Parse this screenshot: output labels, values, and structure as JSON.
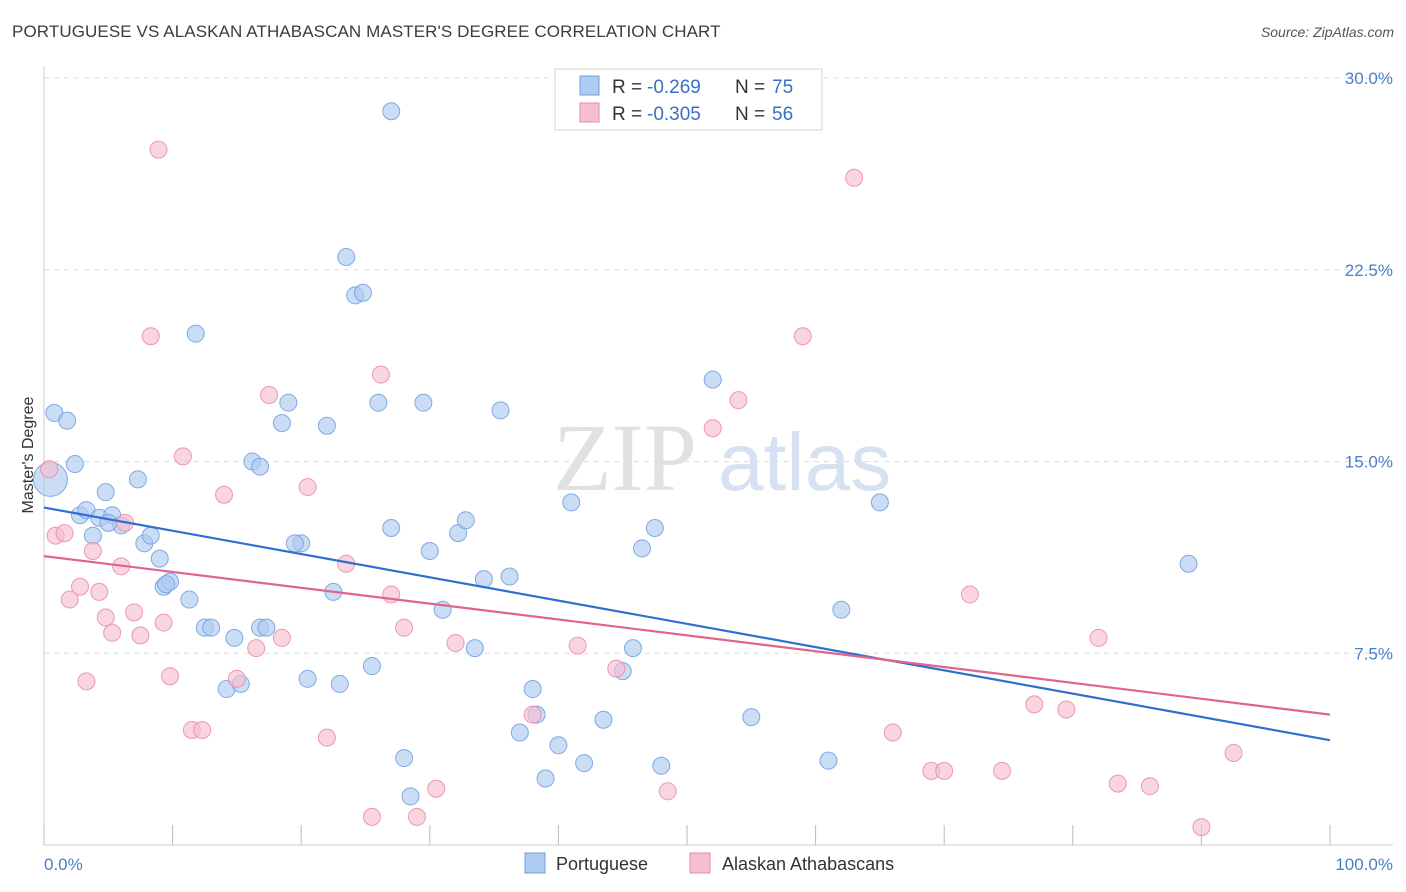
{
  "title": "PORTUGUESE VS ALASKAN ATHABASCAN MASTER'S DEGREE CORRELATION CHART",
  "source": "Source: ZipAtlas.com",
  "watermark": {
    "zip": "ZIP",
    "atlas": "atlas"
  },
  "legend": {
    "rows": [
      {
        "r_label": "R =",
        "r_value": "-0.269",
        "n_label": "N =",
        "n_value": "75"
      },
      {
        "r_label": "R =",
        "r_value": "-0.305",
        "n_label": "N =",
        "n_value": "56"
      }
    ]
  },
  "colors": {
    "portuguese_fill": "#aecbf0",
    "portuguese_stroke": "#6d9ee0",
    "portuguese_line": "#2f6fd0",
    "alaskan_fill": "#f6bfd0",
    "alaskan_stroke": "#e98aa8",
    "alaskan_line": "#e0648f",
    "axis_label": "#4a7fc9",
    "grid": "#dddddd"
  },
  "chart_data": {
    "type": "scatter",
    "ylabel": "Master's Degree",
    "xlim": [
      0,
      100
    ],
    "ylim": [
      0,
      30
    ],
    "x_tick_labels": [
      "0.0%",
      "100.0%"
    ],
    "y_ticks": [
      7.5,
      15.0,
      22.5,
      30.0
    ],
    "y_tick_labels": [
      "7.5%",
      "15.0%",
      "22.5%",
      "30.0%"
    ],
    "grid": "horizontal dashed",
    "series": [
      {
        "name": "Portuguese",
        "trend": {
          "x": [
            0,
            100
          ],
          "y": [
            13.2,
            4.1
          ]
        },
        "points": [
          [
            0.5,
            14.3
          ],
          [
            0.8,
            16.9
          ],
          [
            1.8,
            16.6
          ],
          [
            2.4,
            14.9
          ],
          [
            2.8,
            12.9
          ],
          [
            3.3,
            13.1
          ],
          [
            3.8,
            12.1
          ],
          [
            4.3,
            12.8
          ],
          [
            4.8,
            13.8
          ],
          [
            5.3,
            12.9
          ],
          [
            6.0,
            12.5
          ],
          [
            7.3,
            14.3
          ],
          [
            7.8,
            11.8
          ],
          [
            8.3,
            12.1
          ],
          [
            9.0,
            11.2
          ],
          [
            9.3,
            10.1
          ],
          [
            9.8,
            10.3
          ],
          [
            11.3,
            9.6
          ],
          [
            12.5,
            8.5
          ],
          [
            13.0,
            8.5
          ],
          [
            11.8,
            20.0
          ],
          [
            14.2,
            6.1
          ],
          [
            14.8,
            8.1
          ],
          [
            15.3,
            6.3
          ],
          [
            16.8,
            8.5
          ],
          [
            17.3,
            8.5
          ],
          [
            16.2,
            15.0
          ],
          [
            16.8,
            14.8
          ],
          [
            18.5,
            16.5
          ],
          [
            19.0,
            17.3
          ],
          [
            20.0,
            11.8
          ],
          [
            20.5,
            6.5
          ],
          [
            22.0,
            16.4
          ],
          [
            22.5,
            9.9
          ],
          [
            23.0,
            6.3
          ],
          [
            23.5,
            23.0
          ],
          [
            24.2,
            21.5
          ],
          [
            24.8,
            21.6
          ],
          [
            25.5,
            7.0
          ],
          [
            26.0,
            17.3
          ],
          [
            27.0,
            12.4
          ],
          [
            28.0,
            3.4
          ],
          [
            28.5,
            1.9
          ],
          [
            29.5,
            17.3
          ],
          [
            30.0,
            11.5
          ],
          [
            31.0,
            9.2
          ],
          [
            32.2,
            12.2
          ],
          [
            32.8,
            12.7
          ],
          [
            33.5,
            7.7
          ],
          [
            34.2,
            10.4
          ],
          [
            35.5,
            17.0
          ],
          [
            36.2,
            10.5
          ],
          [
            37.0,
            4.4
          ],
          [
            38.0,
            6.1
          ],
          [
            38.3,
            5.1
          ],
          [
            39.0,
            2.6
          ],
          [
            40.0,
            3.9
          ],
          [
            41.0,
            13.4
          ],
          [
            42.0,
            3.2
          ],
          [
            43.5,
            4.9
          ],
          [
            45.0,
            6.8
          ],
          [
            45.8,
            7.7
          ],
          [
            46.5,
            11.6
          ],
          [
            47.5,
            12.4
          ],
          [
            48.0,
            3.1
          ],
          [
            52.0,
            18.2
          ],
          [
            55.0,
            5.0
          ],
          [
            61.0,
            3.3
          ],
          [
            62.0,
            9.2
          ],
          [
            65.0,
            13.4
          ],
          [
            89.0,
            11.0
          ],
          [
            27.0,
            28.7
          ],
          [
            9.5,
            10.2
          ],
          [
            5.0,
            12.6
          ],
          [
            19.5,
            11.8
          ]
        ]
      },
      {
        "name": "Alaskan Athabascans",
        "trend": {
          "x": [
            0,
            100
          ],
          "y": [
            11.3,
            5.1
          ]
        },
        "points": [
          [
            0.4,
            14.7
          ],
          [
            0.9,
            12.1
          ],
          [
            1.6,
            12.2
          ],
          [
            2.0,
            9.6
          ],
          [
            2.8,
            10.1
          ],
          [
            3.3,
            6.4
          ],
          [
            3.8,
            11.5
          ],
          [
            4.3,
            9.9
          ],
          [
            4.8,
            8.9
          ],
          [
            5.3,
            8.3
          ],
          [
            6.0,
            10.9
          ],
          [
            6.3,
            12.6
          ],
          [
            7.0,
            9.1
          ],
          [
            7.5,
            8.2
          ],
          [
            8.3,
            19.9
          ],
          [
            8.9,
            27.2
          ],
          [
            9.3,
            8.7
          ],
          [
            9.8,
            6.6
          ],
          [
            10.8,
            15.2
          ],
          [
            11.5,
            4.5
          ],
          [
            12.3,
            4.5
          ],
          [
            14.0,
            13.7
          ],
          [
            15.0,
            6.5
          ],
          [
            16.5,
            7.7
          ],
          [
            17.5,
            17.6
          ],
          [
            18.5,
            8.1
          ],
          [
            20.5,
            14.0
          ],
          [
            22.0,
            4.2
          ],
          [
            23.5,
            11.0
          ],
          [
            25.5,
            1.1
          ],
          [
            26.2,
            18.4
          ],
          [
            27.0,
            9.8
          ],
          [
            28.0,
            8.5
          ],
          [
            29.0,
            1.1
          ],
          [
            30.5,
            2.2
          ],
          [
            32.0,
            7.9
          ],
          [
            38.0,
            5.1
          ],
          [
            41.5,
            7.8
          ],
          [
            44.5,
            6.9
          ],
          [
            48.5,
            2.1
          ],
          [
            52.0,
            16.3
          ],
          [
            54.0,
            17.4
          ],
          [
            59.0,
            19.9
          ],
          [
            63.0,
            26.1
          ],
          [
            66.0,
            4.4
          ],
          [
            69.0,
            2.9
          ],
          [
            70.0,
            2.9
          ],
          [
            72.0,
            9.8
          ],
          [
            74.5,
            2.9
          ],
          [
            77.0,
            5.5
          ],
          [
            79.5,
            5.3
          ],
          [
            82.0,
            8.1
          ],
          [
            83.5,
            2.4
          ],
          [
            86.0,
            2.3
          ],
          [
            90.0,
            0.7
          ],
          [
            92.5,
            3.6
          ]
        ]
      }
    ]
  }
}
